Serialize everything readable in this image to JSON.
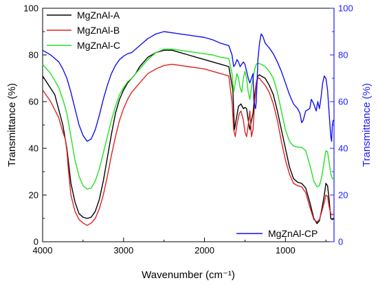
{
  "chart_data": {
    "type": "line",
    "xlabel": "Wavenumber (cm⁻¹)",
    "ylabel_left": "Transmittance (%)",
    "ylabel_right": "Transmittance (%)",
    "xlim": [
      4000,
      400
    ],
    "ylim_left": [
      0,
      100
    ],
    "ylim_right": [
      0,
      100
    ],
    "x_ticks": [
      4000,
      3000,
      2000,
      1000
    ],
    "y_ticks_left": [
      0,
      20,
      40,
      60,
      80,
      100
    ],
    "y_ticks_right": [
      0,
      20,
      40,
      60,
      80,
      100
    ],
    "x_tick_labels": [
      "4000",
      "3000",
      "2000",
      "1000"
    ],
    "y_tick_labels_left": [
      "0",
      "20",
      "40",
      "60",
      "80",
      "100"
    ],
    "y_tick_labels_right": [
      "0",
      "20",
      "40",
      "60",
      "80",
      "100"
    ],
    "grid": false,
    "legend_top": [
      "MgZnAl-A",
      "MgZnAl-B",
      "MgZnAl-C"
    ],
    "legend_bottom": [
      "MgZnAl-CP"
    ],
    "series": [
      {
        "name": "MgZnAl-A",
        "axis": "left",
        "color": "#000000",
        "points": [
          [
            4000,
            71
          ],
          [
            3850,
            63
          ],
          [
            3750,
            50
          ],
          [
            3700,
            40
          ],
          [
            3650,
            25
          ],
          [
            3600,
            17
          ],
          [
            3550,
            12
          ],
          [
            3500,
            10.5
          ],
          [
            3450,
            10
          ],
          [
            3400,
            10.5
          ],
          [
            3350,
            13
          ],
          [
            3300,
            18
          ],
          [
            3250,
            26
          ],
          [
            3200,
            36
          ],
          [
            3150,
            46
          ],
          [
            3100,
            55
          ],
          [
            3050,
            61
          ],
          [
            3000,
            65
          ],
          [
            2950,
            68
          ],
          [
            2900,
            70
          ],
          [
            2850,
            72
          ],
          [
            2800,
            75
          ],
          [
            2700,
            79
          ],
          [
            2600,
            81
          ],
          [
            2500,
            82
          ],
          [
            2400,
            82
          ],
          [
            2300,
            81
          ],
          [
            2200,
            80
          ],
          [
            2100,
            79
          ],
          [
            2000,
            78
          ],
          [
            1900,
            77
          ],
          [
            1800,
            76
          ],
          [
            1700,
            75
          ],
          [
            1650,
            65
          ],
          [
            1630,
            48
          ],
          [
            1610,
            52
          ],
          [
            1580,
            58
          ],
          [
            1550,
            59
          ],
          [
            1520,
            57
          ],
          [
            1500,
            57.5
          ],
          [
            1480,
            57
          ],
          [
            1460,
            52
          ],
          [
            1440,
            48
          ],
          [
            1420,
            52
          ],
          [
            1400,
            55
          ],
          [
            1380,
            63
          ],
          [
            1360,
            68
          ],
          [
            1340,
            71
          ],
          [
            1320,
            71.5
          ],
          [
            1300,
            71
          ],
          [
            1250,
            70
          ],
          [
            1200,
            67
          ],
          [
            1150,
            63
          ],
          [
            1100,
            56
          ],
          [
            1050,
            48
          ],
          [
            1000,
            40
          ],
          [
            950,
            32
          ],
          [
            900,
            27
          ],
          [
            850,
            25.5
          ],
          [
            800,
            25
          ],
          [
            750,
            23
          ],
          [
            700,
            17
          ],
          [
            650,
            10
          ],
          [
            610,
            7.8
          ],
          [
            580,
            9
          ],
          [
            550,
            14
          ],
          [
            520,
            20
          ],
          [
            500,
            25
          ],
          [
            480,
            24
          ],
          [
            460,
            18
          ],
          [
            440,
            10
          ],
          [
            420,
            9.5
          ],
          [
            400,
            10
          ]
        ]
      },
      {
        "name": "MgZnAl-B",
        "axis": "left",
        "color": "#e02020",
        "points": [
          [
            4000,
            65
          ],
          [
            3900,
            60
          ],
          [
            3800,
            53
          ],
          [
            3750,
            47
          ],
          [
            3720,
            44
          ],
          [
            3700,
            39
          ],
          [
            3680,
            30
          ],
          [
            3650,
            20
          ],
          [
            3600,
            13
          ],
          [
            3550,
            9.5
          ],
          [
            3500,
            8
          ],
          [
            3450,
            7
          ],
          [
            3400,
            8
          ],
          [
            3350,
            10
          ],
          [
            3300,
            14
          ],
          [
            3250,
            20
          ],
          [
            3200,
            28
          ],
          [
            3150,
            37
          ],
          [
            3100,
            45
          ],
          [
            3050,
            52
          ],
          [
            3000,
            57
          ],
          [
            2950,
            61
          ],
          [
            2900,
            64
          ],
          [
            2850,
            66
          ],
          [
            2800,
            68
          ],
          [
            2700,
            72
          ],
          [
            2600,
            74
          ],
          [
            2500,
            75.5
          ],
          [
            2400,
            76
          ],
          [
            2300,
            75.5
          ],
          [
            2200,
            75
          ],
          [
            2100,
            74.5
          ],
          [
            2000,
            74
          ],
          [
            1900,
            73
          ],
          [
            1800,
            72
          ],
          [
            1700,
            71
          ],
          [
            1660,
            60
          ],
          [
            1640,
            48
          ],
          [
            1620,
            45
          ],
          [
            1600,
            50
          ],
          [
            1570,
            55
          ],
          [
            1550,
            56
          ],
          [
            1520,
            52
          ],
          [
            1500,
            47
          ],
          [
            1480,
            45
          ],
          [
            1460,
            50
          ],
          [
            1440,
            56
          ],
          [
            1420,
            45
          ],
          [
            1400,
            48
          ],
          [
            1380,
            60
          ],
          [
            1360,
            68
          ],
          [
            1340,
            70
          ],
          [
            1320,
            70
          ],
          [
            1300,
            69
          ],
          [
            1250,
            67
          ],
          [
            1200,
            64
          ],
          [
            1150,
            59
          ],
          [
            1100,
            52
          ],
          [
            1050,
            43
          ],
          [
            1000,
            35
          ],
          [
            950,
            29
          ],
          [
            900,
            25
          ],
          [
            850,
            24
          ],
          [
            800,
            23.5
          ],
          [
            750,
            21
          ],
          [
            700,
            15
          ],
          [
            650,
            9.5
          ],
          [
            610,
            8.5
          ],
          [
            580,
            9.5
          ],
          [
            550,
            13
          ],
          [
            520,
            17
          ],
          [
            500,
            20
          ],
          [
            480,
            19.5
          ],
          [
            460,
            15
          ],
          [
            440,
            12
          ],
          [
            420,
            11.5
          ],
          [
            400,
            12
          ]
        ]
      },
      {
        "name": "MgZnAl-C",
        "axis": "left",
        "color": "#22e022",
        "points": [
          [
            4000,
            76
          ],
          [
            3900,
            72
          ],
          [
            3800,
            66
          ],
          [
            3750,
            61
          ],
          [
            3700,
            55
          ],
          [
            3650,
            45
          ],
          [
            3600,
            35
          ],
          [
            3550,
            28
          ],
          [
            3500,
            24
          ],
          [
            3450,
            22.5
          ],
          [
            3400,
            23
          ],
          [
            3350,
            26
          ],
          [
            3300,
            31
          ],
          [
            3250,
            38
          ],
          [
            3200,
            45
          ],
          [
            3150,
            52
          ],
          [
            3100,
            58
          ],
          [
            3050,
            63
          ],
          [
            3000,
            66
          ],
          [
            2950,
            68.5
          ],
          [
            2900,
            70
          ],
          [
            2850,
            72
          ],
          [
            2800,
            74
          ],
          [
            2700,
            78
          ],
          [
            2600,
            81
          ],
          [
            2500,
            82.5
          ],
          [
            2400,
            82.5
          ],
          [
            2300,
            82
          ],
          [
            2200,
            81.5
          ],
          [
            2100,
            81
          ],
          [
            2000,
            80.5
          ],
          [
            1900,
            80
          ],
          [
            1800,
            79
          ],
          [
            1700,
            78.5
          ],
          [
            1660,
            72
          ],
          [
            1640,
            64
          ],
          [
            1620,
            68
          ],
          [
            1600,
            72
          ],
          [
            1580,
            70
          ],
          [
            1560,
            66
          ],
          [
            1540,
            64
          ],
          [
            1520,
            70
          ],
          [
            1500,
            73
          ],
          [
            1480,
            70
          ],
          [
            1460,
            64
          ],
          [
            1440,
            61
          ],
          [
            1420,
            66
          ],
          [
            1400,
            70
          ],
          [
            1380,
            74
          ],
          [
            1360,
            76
          ],
          [
            1340,
            76.5
          ],
          [
            1300,
            76
          ],
          [
            1250,
            75
          ],
          [
            1200,
            73
          ],
          [
            1150,
            70
          ],
          [
            1100,
            64
          ],
          [
            1050,
            56
          ],
          [
            1000,
            48
          ],
          [
            950,
            43
          ],
          [
            900,
            41
          ],
          [
            850,
            40.5
          ],
          [
            800,
            40.5
          ],
          [
            750,
            39
          ],
          [
            700,
            33
          ],
          [
            650,
            26
          ],
          [
            610,
            23.5
          ],
          [
            580,
            24
          ],
          [
            550,
            28
          ],
          [
            520,
            35
          ],
          [
            500,
            39
          ],
          [
            480,
            38.5
          ],
          [
            460,
            34
          ],
          [
            440,
            29
          ],
          [
            420,
            27
          ],
          [
            400,
            27.5
          ]
        ]
      },
      {
        "name": "MgZnAl-CP",
        "axis": "right",
        "color": "#1010ee",
        "points": [
          [
            4000,
            82
          ],
          [
            3900,
            80
          ],
          [
            3800,
            77
          ],
          [
            3750,
            74
          ],
          [
            3700,
            70
          ],
          [
            3650,
            64
          ],
          [
            3600,
            57
          ],
          [
            3550,
            50
          ],
          [
            3500,
            45.5
          ],
          [
            3450,
            43
          ],
          [
            3400,
            44
          ],
          [
            3350,
            48
          ],
          [
            3300,
            54
          ],
          [
            3250,
            61
          ],
          [
            3200,
            67
          ],
          [
            3150,
            72
          ],
          [
            3100,
            75.5
          ],
          [
            3050,
            78
          ],
          [
            3000,
            79.5
          ],
          [
            2950,
            80.5
          ],
          [
            2900,
            81
          ],
          [
            2850,
            82.5
          ],
          [
            2800,
            84
          ],
          [
            2700,
            87
          ],
          [
            2600,
            89
          ],
          [
            2500,
            90
          ],
          [
            2400,
            89.5
          ],
          [
            2300,
            89
          ],
          [
            2200,
            88.5
          ],
          [
            2100,
            88
          ],
          [
            2000,
            87.5
          ],
          [
            1900,
            86.5
          ],
          [
            1800,
            85
          ],
          [
            1700,
            84
          ],
          [
            1660,
            80
          ],
          [
            1640,
            75
          ],
          [
            1620,
            76
          ],
          [
            1600,
            78
          ],
          [
            1580,
            77
          ],
          [
            1560,
            75
          ],
          [
            1540,
            76
          ],
          [
            1520,
            77
          ],
          [
            1500,
            76
          ],
          [
            1480,
            73
          ],
          [
            1460,
            70
          ],
          [
            1440,
            68
          ],
          [
            1420,
            70
          ],
          [
            1400,
            72
          ],
          [
            1390,
            60
          ],
          [
            1370,
            57
          ],
          [
            1360,
            60
          ],
          [
            1340,
            78
          ],
          [
            1320,
            85
          ],
          [
            1300,
            89
          ],
          [
            1280,
            88
          ],
          [
            1250,
            85
          ],
          [
            1200,
            83
          ],
          [
            1150,
            80.5
          ],
          [
            1100,
            77
          ],
          [
            1050,
            73
          ],
          [
            1000,
            68
          ],
          [
            950,
            63
          ],
          [
            900,
            59
          ],
          [
            850,
            57
          ],
          [
            820,
            55
          ],
          [
            800,
            51
          ],
          [
            780,
            52
          ],
          [
            750,
            56
          ],
          [
            700,
            57
          ],
          [
            680,
            61
          ],
          [
            650,
            59
          ],
          [
            620,
            56
          ],
          [
            600,
            60
          ],
          [
            580,
            57
          ],
          [
            560,
            62
          ],
          [
            540,
            68
          ],
          [
            520,
            71
          ],
          [
            500,
            70
          ],
          [
            480,
            65
          ],
          [
            460,
            55
          ],
          [
            440,
            45
          ],
          [
            430,
            43
          ],
          [
            420,
            50
          ],
          [
            410,
            52
          ],
          [
            400,
            52
          ]
        ]
      }
    ]
  }
}
